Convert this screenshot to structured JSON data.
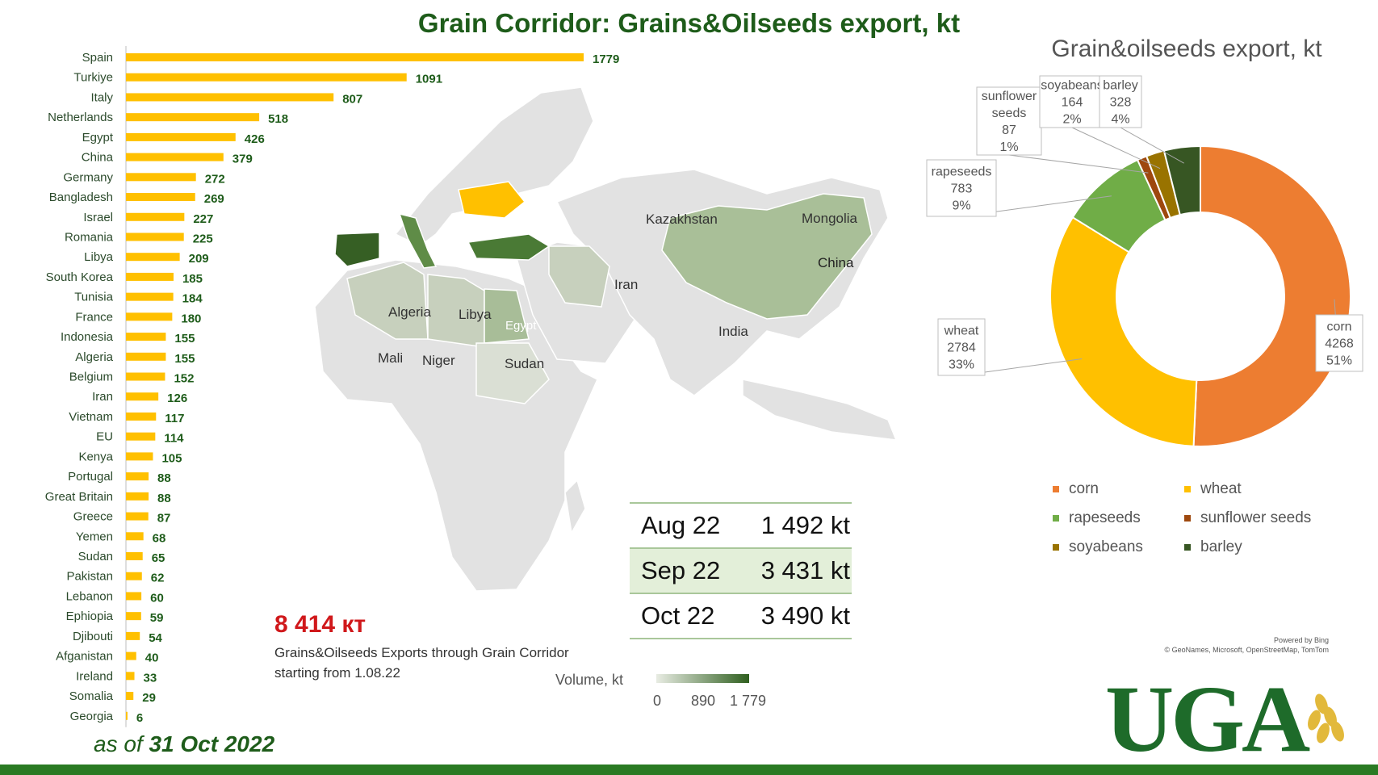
{
  "title": "Grain Corridor: Grains&Oilseeds export, kt",
  "chart_data": [
    {
      "type": "bar",
      "orientation": "horizontal",
      "title": "",
      "categories": [
        "Spain",
        "Turkiye",
        "Italy",
        "Netherlands",
        "Egypt",
        "China",
        "Germany",
        "Bangladesh",
        "Israel",
        "Romania",
        "Libya",
        "South Korea",
        "Tunisia",
        "France",
        "Indonesia",
        "Algeria",
        "Belgium",
        "Iran",
        "Vietnam",
        "EU",
        "Kenya",
        "Portugal",
        "Great Britain",
        "Greece",
        "Yemen",
        "Sudan",
        "Pakistan",
        "Lebanon",
        "Ephiopia",
        "Djibouti",
        "Afganistan",
        "Ireland",
        "Somalia",
        "Georgia"
      ],
      "values": [
        1779,
        1091,
        807,
        518,
        426,
        379,
        272,
        269,
        227,
        225,
        209,
        185,
        184,
        180,
        155,
        155,
        152,
        126,
        117,
        114,
        105,
        88,
        88,
        87,
        68,
        65,
        62,
        60,
        59,
        54,
        40,
        33,
        29,
        6
      ],
      "xlim": [
        0,
        1779
      ],
      "color": "#ffc000",
      "label_color": "#1e5c1a"
    },
    {
      "type": "pie",
      "title": "Grain&oilseeds export, kt",
      "style": "donut",
      "labels": [
        "corn",
        "wheat",
        "rapeseeds",
        "sunflower seeds",
        "soyabeans",
        "barley"
      ],
      "values": [
        4268,
        2784,
        783,
        87,
        164,
        328
      ],
      "percents": [
        "51%",
        "33%",
        "9%",
        "1%",
        "2%",
        "4%"
      ],
      "colors": [
        "#ed7d31",
        "#ffc000",
        "#70ad47",
        "#9e480e",
        "#997300",
        "#375623"
      ],
      "legend": "bottom"
    },
    {
      "type": "table",
      "rows": [
        {
          "month": "Aug 22",
          "value": "1 492 kt"
        },
        {
          "month": "Sep 22",
          "value": "3 431 kt"
        },
        {
          "month": "Oct 22",
          "value": "3 490 kt"
        }
      ]
    }
  ],
  "map": {
    "labels": [
      "Kazakhstan",
      "Mongolia",
      "China",
      "Iran",
      "India",
      "Algeria",
      "Libya",
      "Egypt",
      "Mali",
      "Niger",
      "Sudan"
    ],
    "scale": {
      "label": "Volume, kt",
      "ticks": [
        "0",
        "890",
        "1 779"
      ]
    },
    "credit_1": "Powered by Bing",
    "credit_2": "© GeoNames, Microsoft, OpenStreetMap, TomTom"
  },
  "summary": {
    "total": "8 414 кт",
    "description": "Grains&Oilseeds Exports through Grain Corridor starting from 1.08.22"
  },
  "as_of": {
    "prefix": "as of",
    "date": "31 Oct 2022"
  },
  "logo_text": "UGA"
}
